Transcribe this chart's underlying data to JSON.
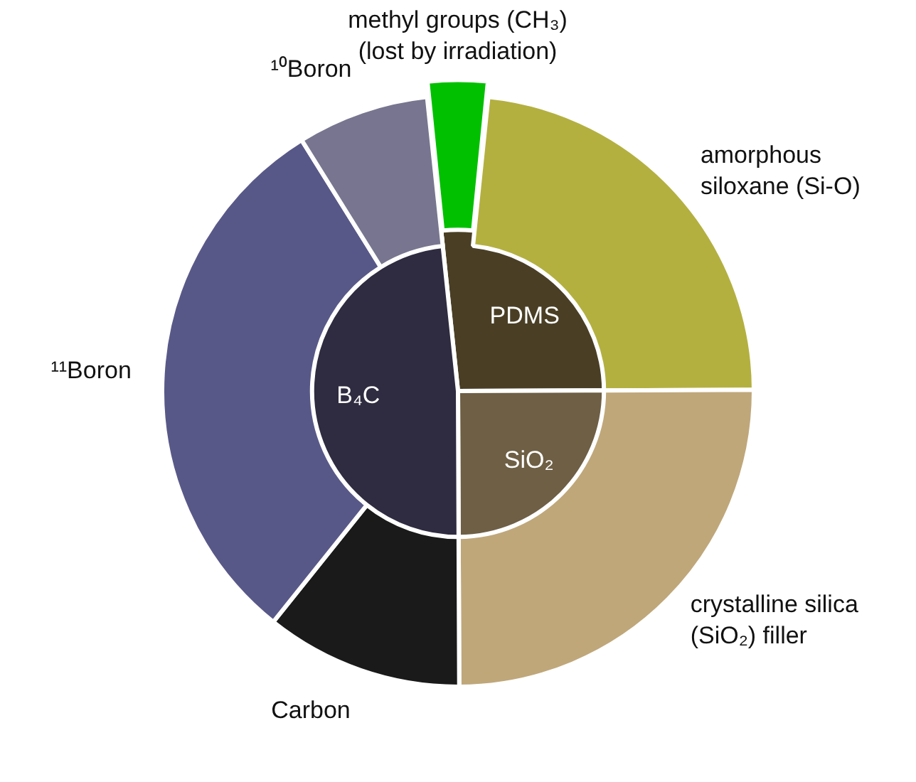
{
  "chart_data": [
    {
      "type": "pie",
      "categories": [
        "PDMS",
        "SiO₂",
        "B₄C"
      ],
      "values": [
        26.6,
        25,
        48.4
      ],
      "colors": [
        "#4a3f25",
        "#6e5f45",
        "#2f2b40"
      ],
      "data_labels": false
    },
    {
      "type": "donut",
      "categories": [
        "methyl groups (CH₃) (lost by irradiation)",
        "amorphous siloxane (Si-O)",
        "crystalline silica (SiO₂) filler",
        "Carbon",
        "¹¹Boron",
        "¹⁰Boron"
      ],
      "values": [
        3.3,
        23.3,
        25,
        10.8,
        30.4,
        7.2
      ],
      "colors": [
        "#00c000",
        "#b3b040",
        "#bfa77a",
        "#1a1a1a",
        "#585888",
        "#77758f"
      ],
      "data_labels": false
    }
  ]
}
